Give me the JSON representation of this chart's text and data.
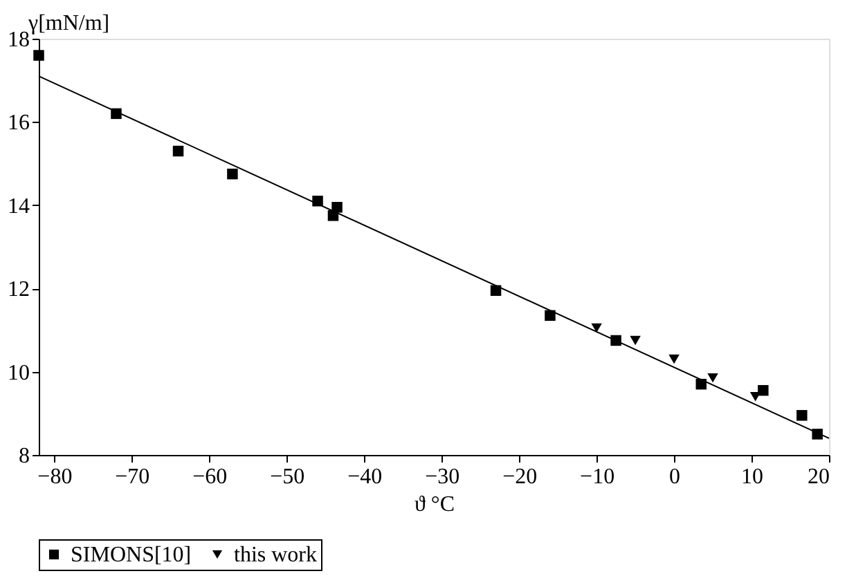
{
  "chart_data": {
    "type": "scatter",
    "xlabel": "ϑ °C",
    "ylabel": "γ[mN/m]",
    "xlim": [
      -82,
      20
    ],
    "ylim": [
      8,
      18
    ],
    "xticks": [
      -80,
      -70,
      -60,
      -50,
      -40,
      -30,
      -20,
      -10,
      0,
      10,
      20
    ],
    "yticks": [
      8,
      10,
      12,
      14,
      16,
      18
    ],
    "grid": false,
    "legend": "bottom",
    "series": [
      {
        "name": "SIMONS[10]",
        "color": "#000000",
        "marker": "square",
        "x": [
          -82,
          -72,
          -64,
          -57,
          -46,
          -44,
          -43.5,
          -23,
          -16,
          -7.5,
          3.5,
          11.5,
          16.5,
          18.5
        ],
        "values": [
          17.6,
          16.2,
          15.3,
          14.75,
          14.1,
          13.75,
          13.95,
          11.95,
          11.35,
          10.75,
          9.7,
          9.55,
          8.95,
          8.5
        ]
      },
      {
        "name": "this work",
        "color": "#000000",
        "marker": "triangle",
        "x": [
          -10,
          -5,
          0,
          5,
          10.5
        ],
        "values": [
          11.05,
          10.75,
          10.3,
          9.85,
          9.4
        ]
      },
      {
        "type": "line",
        "color": "#000000",
        "marker": "none",
        "line_style": "solid",
        "x": [
          -82,
          20
        ],
        "values": [
          17.1,
          8.4
        ]
      }
    ]
  }
}
